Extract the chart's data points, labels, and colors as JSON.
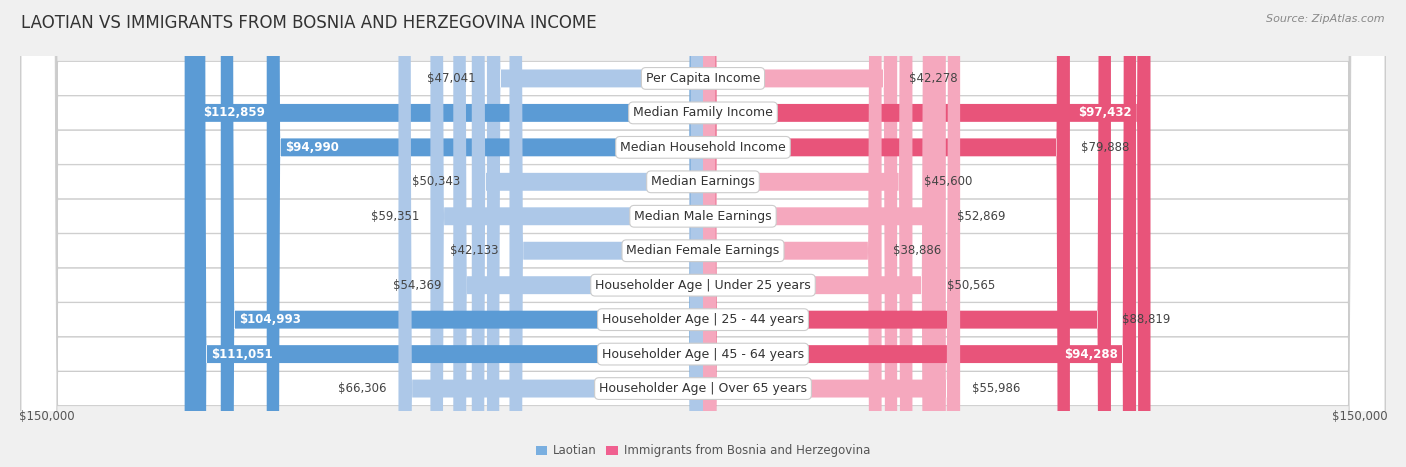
{
  "title": "LAOTIAN VS IMMIGRANTS FROM BOSNIA AND HERZEGOVINA INCOME",
  "source": "Source: ZipAtlas.com",
  "categories": [
    "Per Capita Income",
    "Median Family Income",
    "Median Household Income",
    "Median Earnings",
    "Median Male Earnings",
    "Median Female Earnings",
    "Householder Age | Under 25 years",
    "Householder Age | 25 - 44 years",
    "Householder Age | 45 - 64 years",
    "Householder Age | Over 65 years"
  ],
  "laotian_values": [
    47041,
    112859,
    94990,
    50343,
    59351,
    42133,
    54369,
    104993,
    111051,
    66306
  ],
  "bosnia_values": [
    42278,
    97432,
    79888,
    45600,
    52869,
    38886,
    50565,
    88819,
    94288,
    55986
  ],
  "laotian_labels": [
    "$47,041",
    "$112,859",
    "$94,990",
    "$50,343",
    "$59,351",
    "$42,133",
    "$54,369",
    "$104,993",
    "$111,051",
    "$66,306"
  ],
  "bosnia_labels": [
    "$42,278",
    "$97,432",
    "$79,888",
    "$45,600",
    "$52,869",
    "$38,886",
    "$50,565",
    "$88,819",
    "$94,288",
    "$55,986"
  ],
  "laotian_color_light": "#adc8e8",
  "laotian_color_dark": "#5b9bd5",
  "bosnia_color_light": "#f5a8be",
  "bosnia_color_dark": "#e8547a",
  "laotian_legend_color": "#7aafe0",
  "bosnia_legend_color": "#f06090",
  "max_value": 150000,
  "bg_color": "#f0f0f0",
  "row_color_white": "#ffffff",
  "row_color_gray": "#e8e8e8",
  "title_fontsize": 12,
  "label_fontsize": 9,
  "value_fontsize": 8.5,
  "source_fontsize": 8,
  "legend_label_laotian": "Laotian",
  "legend_label_bosnia": "Immigrants from Bosnia and Herzegovina",
  "inside_threshold": 55000,
  "laotian_inside": [
    false,
    true,
    true,
    false,
    false,
    false,
    false,
    true,
    true,
    false
  ],
  "bosnia_inside": [
    false,
    true,
    false,
    false,
    false,
    false,
    false,
    false,
    true,
    false
  ]
}
